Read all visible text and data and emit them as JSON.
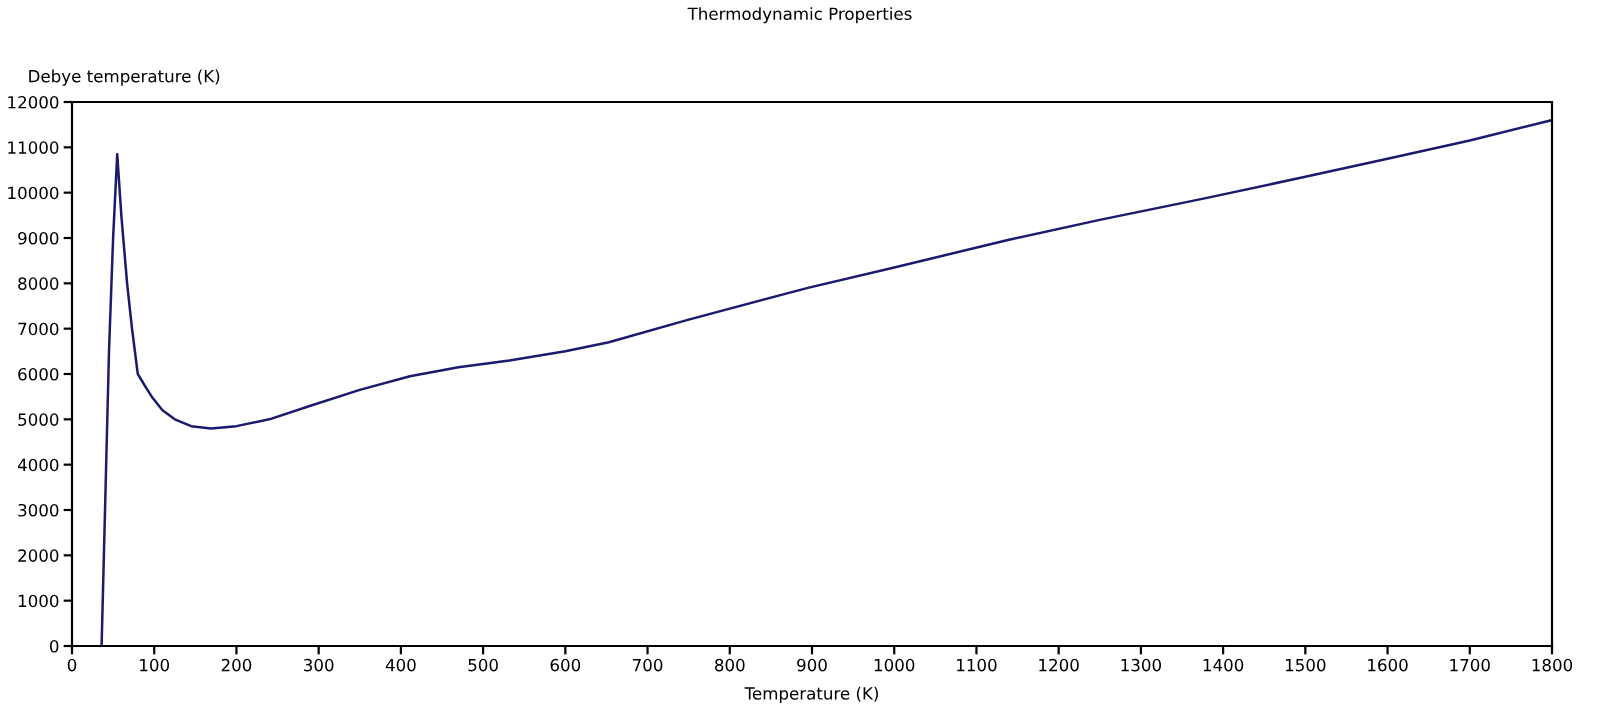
{
  "chart_data": {
    "type": "line",
    "title": "Thermodynamic Properties",
    "xlabel": "Temperature (K)",
    "ylabel": "Debye temperature (K)",
    "series": [
      {
        "color": "#1a1a6e",
        "x": [
          36,
          41,
          45,
          50,
          55,
          60,
          67,
          73,
          80,
          90,
          97,
          110,
          125,
          145,
          169,
          200,
          240,
          290,
          350,
          411,
          470,
          532,
          600,
          653,
          750,
          895,
          1000,
          1137,
          1250,
          1379,
          1500,
          1600,
          1700,
          1800
        ],
        "values": [
          0,
          3600,
          6500,
          9000,
          10850,
          9500,
          8000,
          7000,
          6000,
          5700,
          5500,
          5200,
          5000,
          4850,
          4800,
          4850,
          5000,
          5300,
          5650,
          5950,
          6150,
          6300,
          6500,
          6700,
          7200,
          7900,
          8350,
          8950,
          9400,
          9880,
          10350,
          10750,
          11150,
          11600
        ]
      }
    ],
    "xlim": [
      0,
      1800
    ],
    "xticks": [
      0,
      100,
      200,
      300,
      400,
      500,
      600,
      700,
      800,
      900,
      1000,
      1100,
      1200,
      1300,
      1400,
      1500,
      1600,
      1700,
      1800
    ],
    "ylim": [
      0,
      12000
    ],
    "yticks": [
      0,
      1000,
      2000,
      3000,
      4000,
      5000,
      6000,
      7000,
      8000,
      9000,
      10000,
      11000,
      12000
    ],
    "grid": false,
    "legend": false
  }
}
